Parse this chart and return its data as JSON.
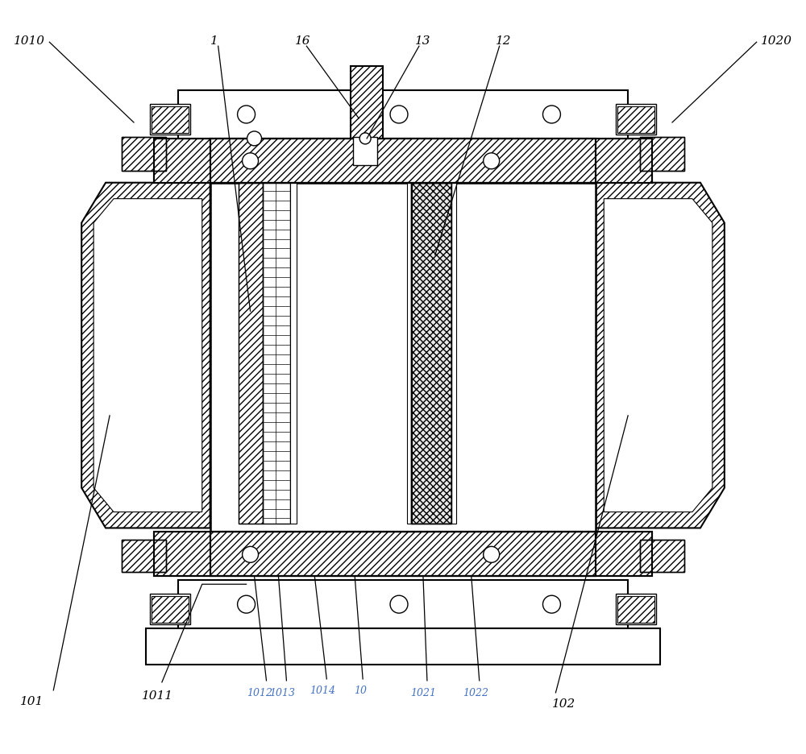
{
  "bg_color": "#ffffff",
  "label_blue": "#4472C4",
  "label_black": "#000000",
  "figsize": [
    10.0,
    9.37
  ],
  "dpi": 100
}
